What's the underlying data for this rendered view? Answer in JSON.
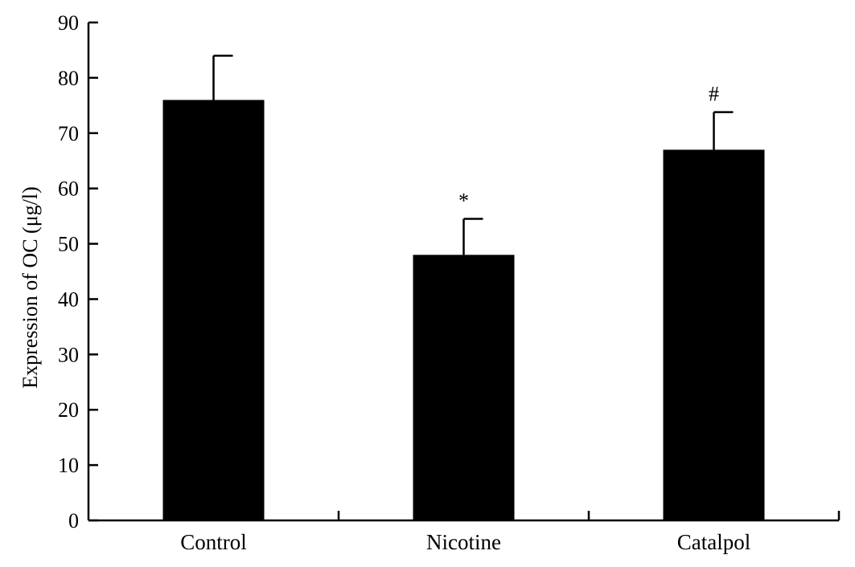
{
  "chart_data": {
    "type": "bar",
    "categories": [
      "Control",
      "Nicotine",
      "Catalpol"
    ],
    "values": [
      76,
      48,
      67
    ],
    "error_upper": [
      84,
      54.5,
      73.8
    ],
    "annotations": [
      "",
      "*",
      "#"
    ],
    "ylabel": "Expression of OC (μg/l)",
    "xlabel": "",
    "title": "",
    "ylim": [
      0,
      90
    ],
    "yticks": [
      0,
      10,
      20,
      30,
      40,
      50,
      60,
      70,
      80,
      90
    ],
    "grid": false,
    "bar_color": "#000000"
  }
}
